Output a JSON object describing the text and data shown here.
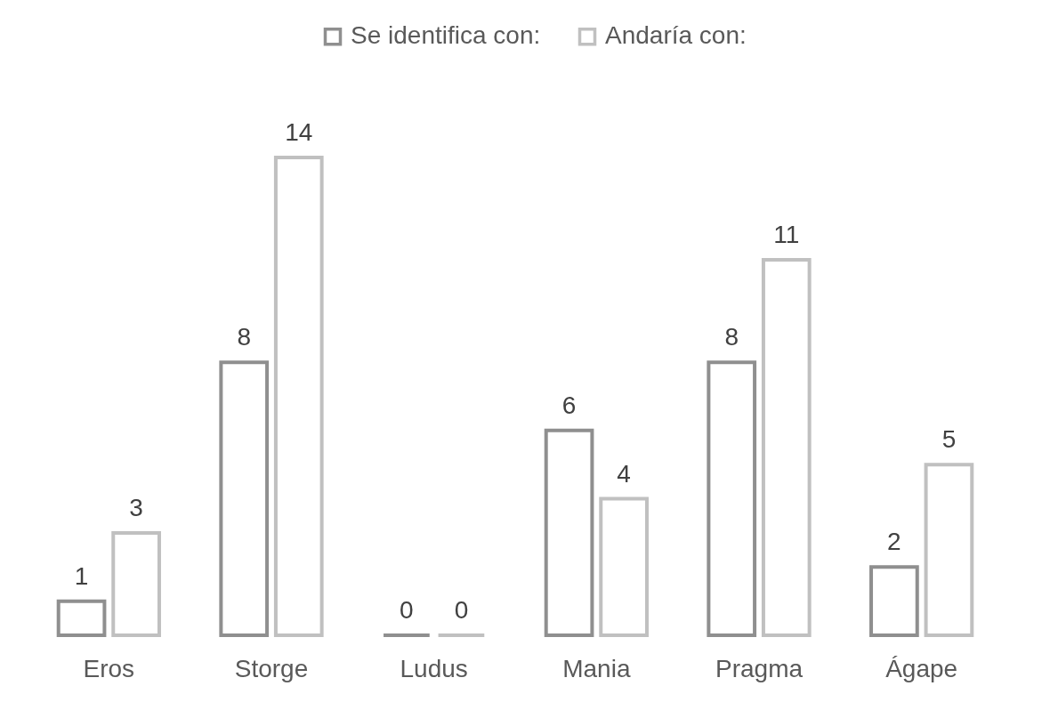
{
  "chart_data": {
    "type": "bar",
    "categories": [
      "Eros",
      "Storge",
      "Ludus",
      "Mania",
      "Pragma",
      "Ágape"
    ],
    "series": [
      {
        "name": "Se identifica con:",
        "color": "#8f8f8f",
        "values": [
          1,
          8,
          0,
          6,
          8,
          2
        ]
      },
      {
        "name": "Andaría con:",
        "color": "#c0c0c0",
        "values": [
          3,
          14,
          0,
          4,
          11,
          5
        ]
      }
    ],
    "data_labels": true,
    "legend": "top"
  }
}
